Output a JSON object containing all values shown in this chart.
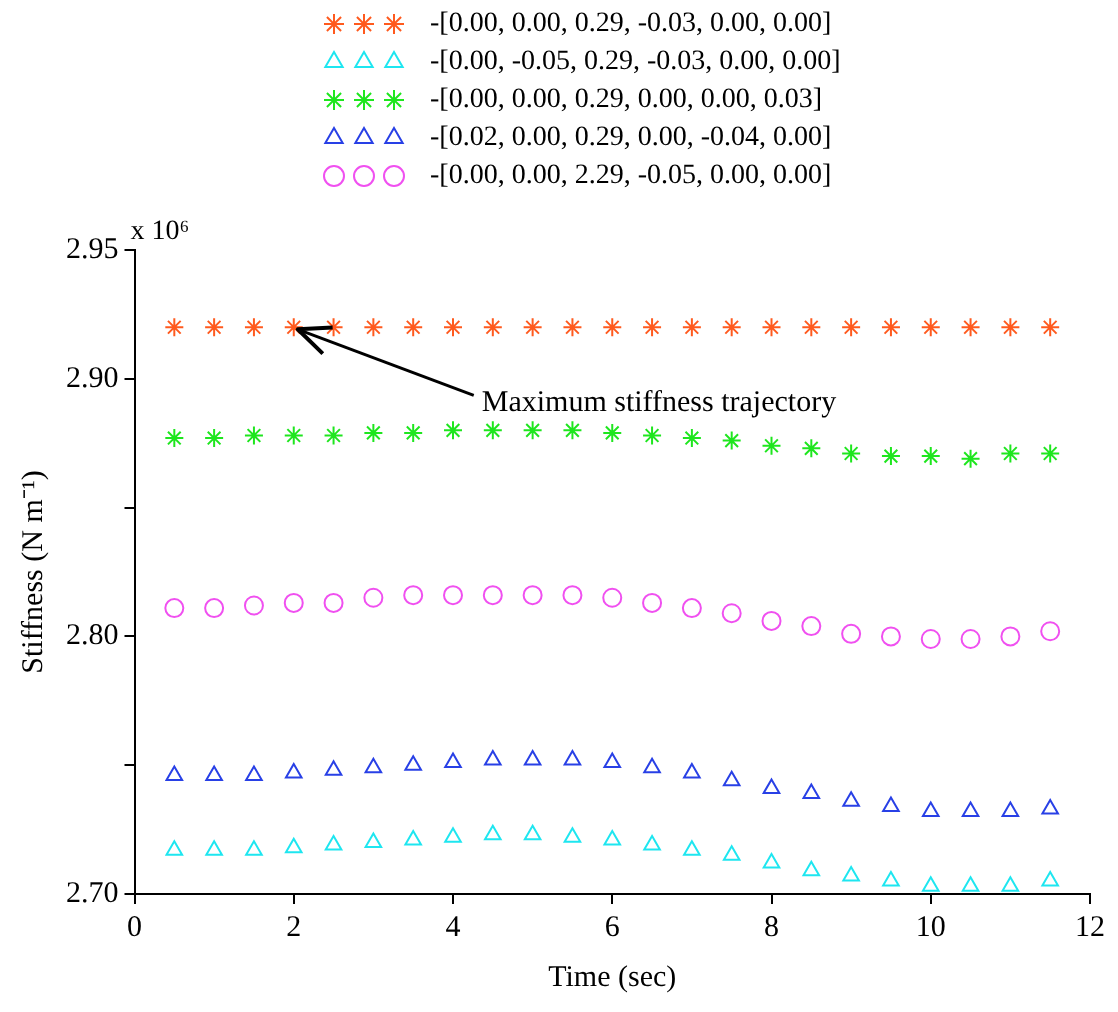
{
  "chart_data": {
    "type": "scatter",
    "xlabel": "Time (sec)",
    "ylabel": "Stiffness (N m⁻¹)",
    "x": [
      0.5,
      1,
      1.5,
      2,
      2.5,
      3,
      3.5,
      4,
      4.5,
      5,
      5.5,
      6,
      6.5,
      7,
      7.5,
      8,
      8.5,
      9,
      9.5,
      10,
      10.5,
      11,
      11.5
    ],
    "series": [
      {
        "name": "-[0.00, 0.00, 0.29, -0.03, 0.00, 0.00]",
        "color": "#ff5a1e",
        "marker": "cross",
        "values": [
          2.92,
          2.92,
          2.92,
          2.92,
          2.92,
          2.92,
          2.92,
          2.92,
          2.92,
          2.92,
          2.92,
          2.92,
          2.92,
          2.92,
          2.92,
          2.92,
          2.92,
          2.92,
          2.92,
          2.92,
          2.92,
          2.92,
          2.92
        ]
      },
      {
        "name": "-[0.00, -0.05, 0.29, -0.03, 0.00, 0.00]",
        "color": "#1ee6f0",
        "marker": "triangle",
        "values": [
          2.717,
          2.717,
          2.717,
          2.718,
          2.719,
          2.72,
          2.721,
          2.722,
          2.723,
          2.723,
          2.722,
          2.721,
          2.719,
          2.717,
          2.715,
          2.712,
          2.709,
          2.707,
          2.705,
          2.703,
          2.703,
          2.703,
          2.705
        ]
      },
      {
        "name": "-[0.00, 0.00, 0.29, 0.00, 0.00, 0.03]",
        "color": "#1ee61e",
        "marker": "cross",
        "values": [
          2.877,
          2.877,
          2.878,
          2.878,
          2.878,
          2.879,
          2.879,
          2.88,
          2.88,
          2.88,
          2.88,
          2.879,
          2.878,
          2.877,
          2.876,
          2.874,
          2.873,
          2.871,
          2.87,
          2.87,
          2.869,
          2.871,
          2.871
        ]
      },
      {
        "name": "-[0.02, 0.00, 0.29, 0.00, -0.04, 0.00]",
        "color": "#2840e6",
        "marker": "triangle",
        "values": [
          2.746,
          2.746,
          2.746,
          2.747,
          2.748,
          2.749,
          2.75,
          2.751,
          2.752,
          2.752,
          2.752,
          2.751,
          2.749,
          2.747,
          2.744,
          2.741,
          2.739,
          2.736,
          2.734,
          2.732,
          2.732,
          2.732,
          2.733
        ]
      },
      {
        "name": "-[0.00, 0.00, 2.29, -0.05, 0.00, 0.00]",
        "color": "#f050f0",
        "marker": "circle",
        "values": [
          2.811,
          2.811,
          2.812,
          2.813,
          2.813,
          2.815,
          2.816,
          2.816,
          2.816,
          2.816,
          2.816,
          2.815,
          2.813,
          2.811,
          2.809,
          2.806,
          2.804,
          2.801,
          2.8,
          2.799,
          2.799,
          2.8,
          2.802
        ]
      }
    ],
    "xlim": [
      0,
      12
    ],
    "xticks": [
      0,
      2,
      4,
      6,
      8,
      10,
      12
    ],
    "ylim": [
      2.7,
      2.95
    ],
    "yticks": [
      {
        "value": 2.7,
        "label": "2.70"
      },
      {
        "value": 2.75,
        "label": null
      },
      {
        "value": 2.8,
        "label": "2.80"
      },
      {
        "value": 2.85,
        "label": null
      },
      {
        "value": 2.9,
        "label": "2.90"
      },
      {
        "value": 2.95,
        "label": "2.95"
      }
    ],
    "annotations": [
      "x 10⁶",
      {
        "text": "Maximum stiffness trajectory",
        "x": 2,
        "y": 2.92
      }
    ],
    "legend": "top",
    "grid": false
  }
}
